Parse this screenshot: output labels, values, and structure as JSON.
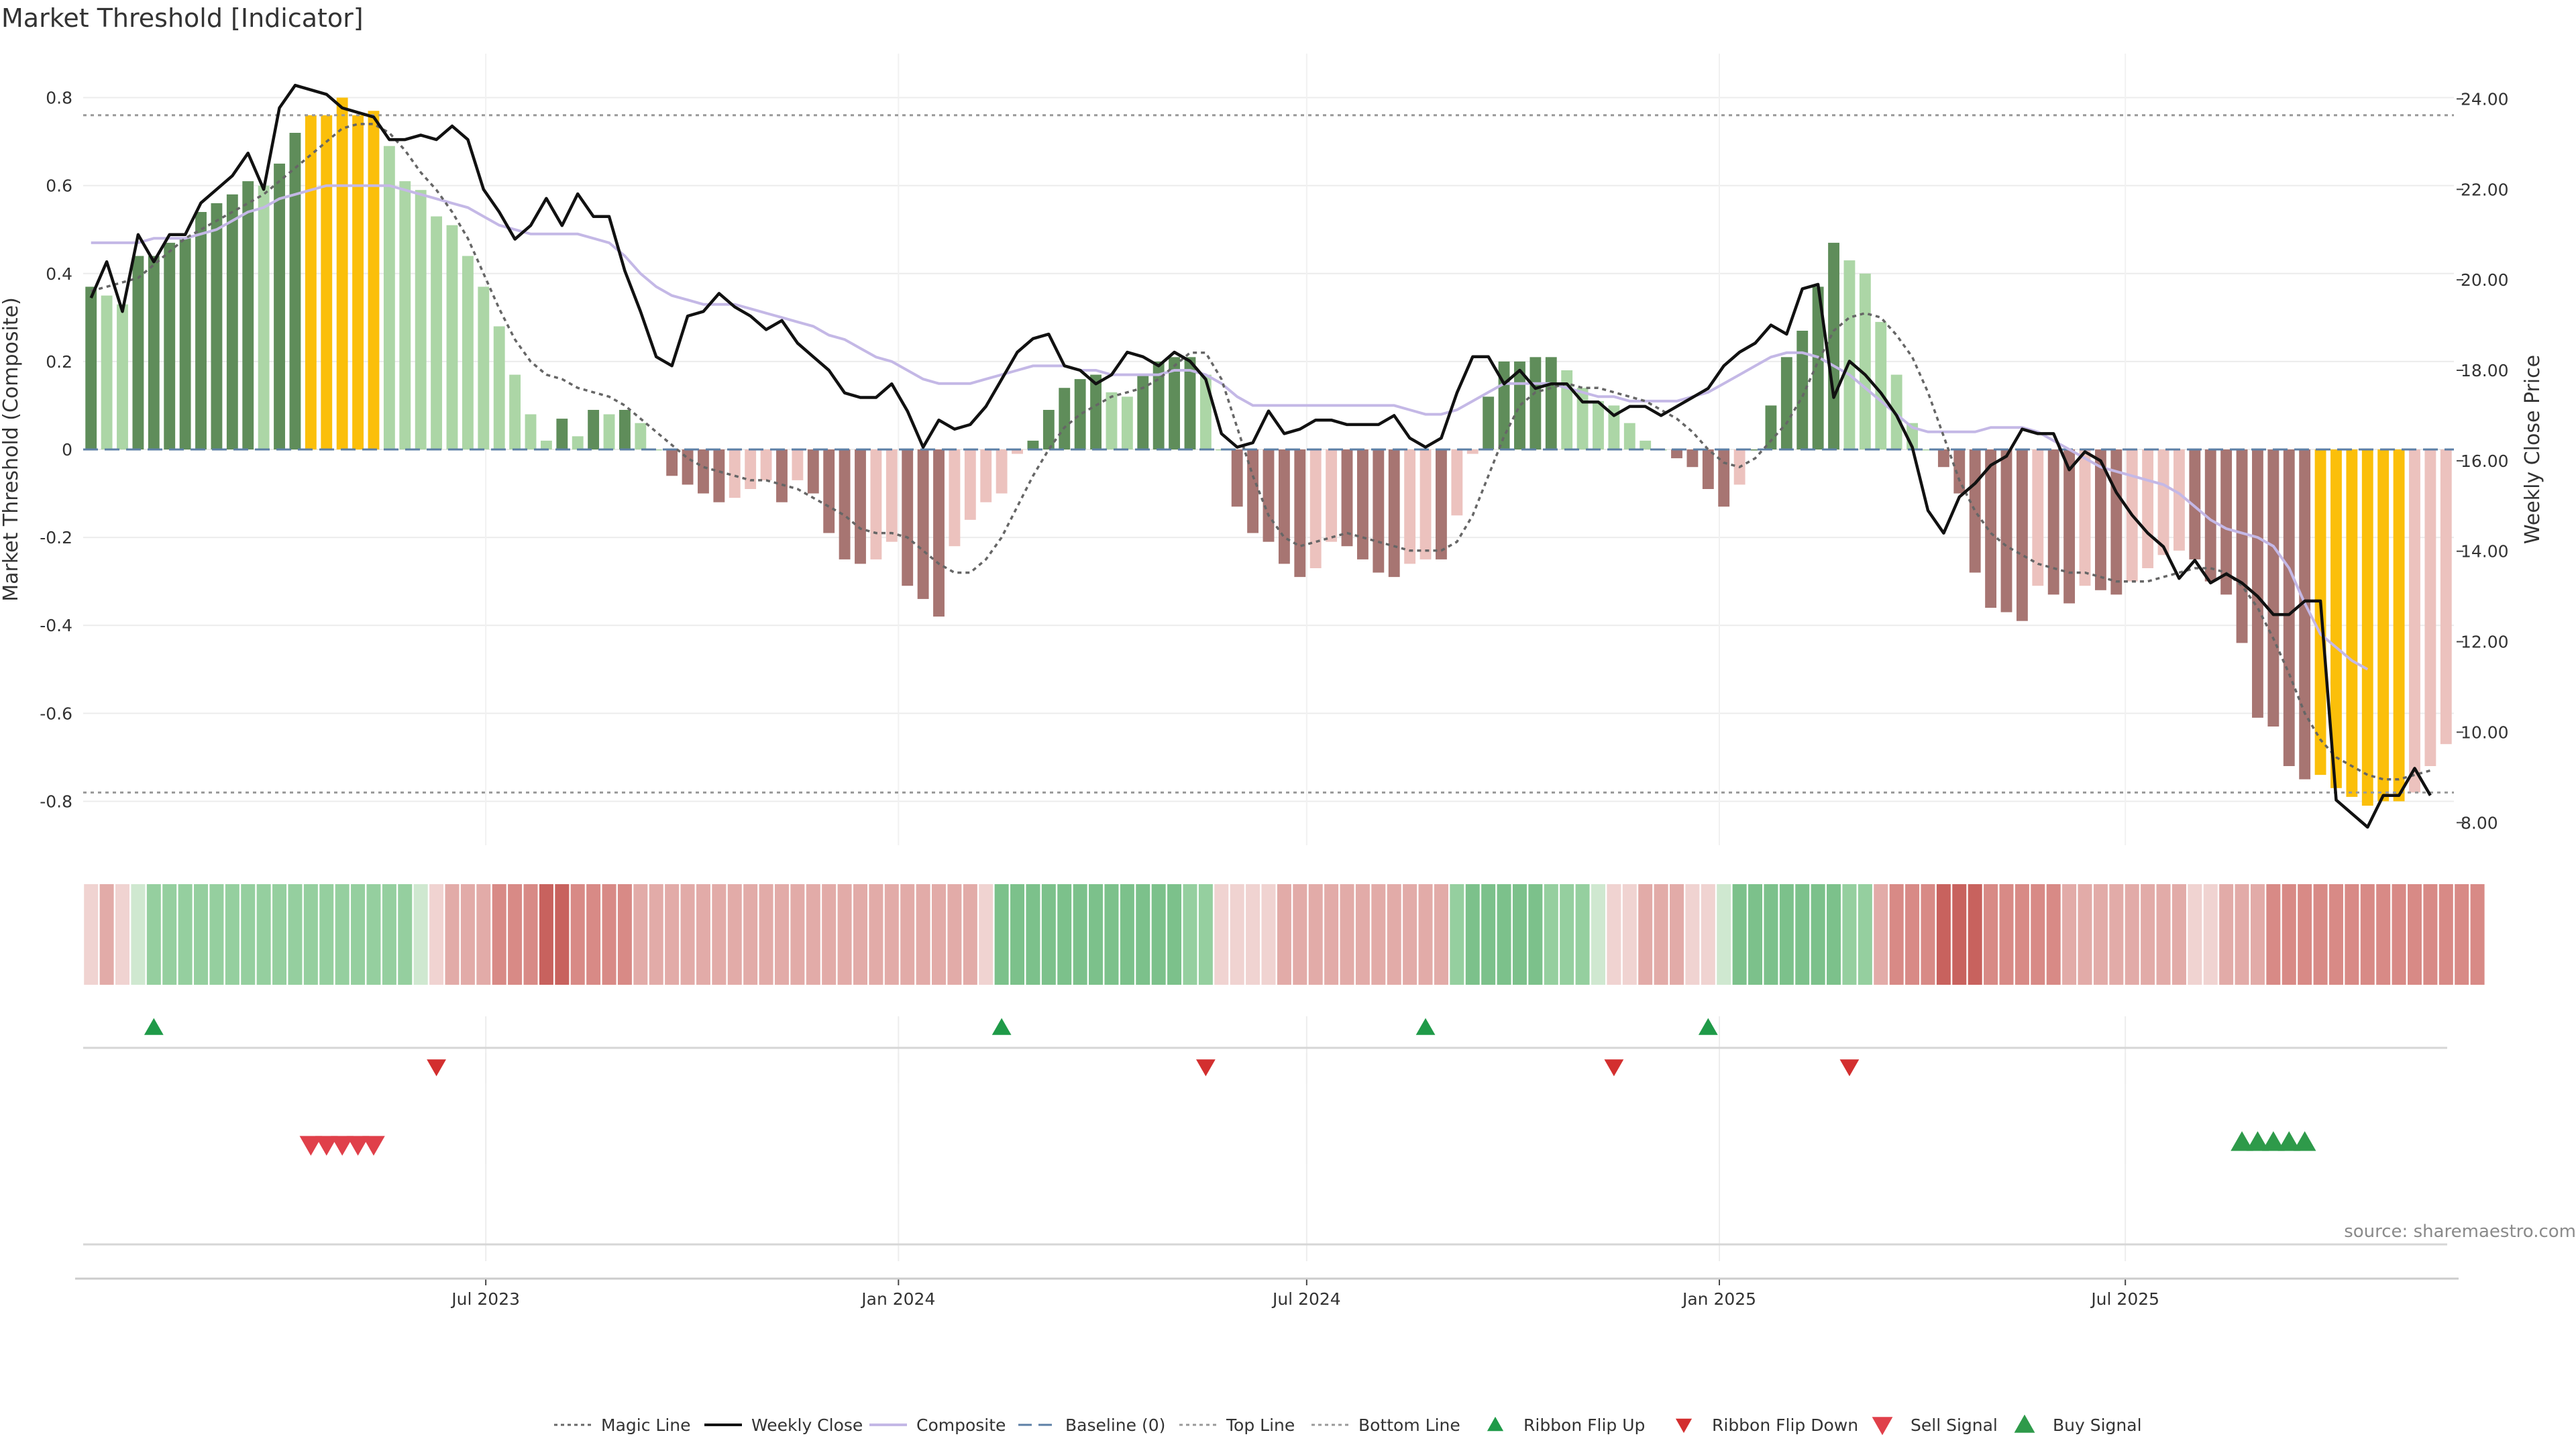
{
  "title": "Market Threshold [Indicator]",
  "source": "source: sharemaestro.com",
  "colors": {
    "bull_dark": "#5f8d5a",
    "bull_light": "#acd6a6",
    "bear_dark": "#a77572",
    "bear_light": "#ecc2be",
    "extreme": "#fbbf0a",
    "price": "#111111",
    "composite": "#c4b8e6",
    "magic": "#666666",
    "baseline": "#5c7fa6",
    "threshold": "#999999",
    "ribbon_up": "#1f9a48",
    "ribbon_down": "#d32f2f",
    "sell": "#e0404a",
    "buy": "#2e9a4a"
  },
  "chart_data": {
    "type": "bar",
    "start_date": "2023-01-06",
    "interval_days": 7,
    "x_ticks": [
      "Jul 2023",
      "Jan 2024",
      "Jul 2024",
      "Jan 2025",
      "Jul 2025"
    ],
    "x_tick_dates": [
      "2023-07-01",
      "2024-01-01",
      "2024-07-01",
      "2025-01-01",
      "2025-07-01"
    ],
    "ylabel": "Market Threshold (Composite)",
    "y2label": "Weekly Close Price",
    "ylim": [
      -0.9,
      0.9
    ],
    "y2lim": [
      7.5,
      25.0
    ],
    "y_ticks": [
      "0.8",
      "0.6",
      "0.4",
      "0.2",
      "0",
      "-0.2",
      "-0.4",
      "-0.6",
      "-0.8"
    ],
    "y_tick_values": [
      0.8,
      0.6,
      0.4,
      0.2,
      0,
      -0.2,
      -0.4,
      -0.6,
      -0.8
    ],
    "y2_ticks": [
      "24.00",
      "22.00",
      "20.00",
      "18.00",
      "16.00",
      "14.00",
      "12.00",
      "10.00",
      "8.00"
    ],
    "y2_tick_values": [
      24,
      22,
      20,
      18,
      16,
      14,
      12,
      10,
      8
    ],
    "top_line": 0.76,
    "bottom_line": -0.78,
    "baseline": 0,
    "bars": [
      0.37,
      0.35,
      0.33,
      0.44,
      0.44,
      0.47,
      0.48,
      0.54,
      0.56,
      0.58,
      0.61,
      0.6,
      0.65,
      0.72,
      0.76,
      0.76,
      0.8,
      0.76,
      0.77,
      0.69,
      0.61,
      0.59,
      0.53,
      0.51,
      0.44,
      0.37,
      0.28,
      0.17,
      0.08,
      0.02,
      0.07,
      0.03,
      0.09,
      0.08,
      0.09,
      0.06,
      0.0,
      -0.06,
      -0.08,
      -0.1,
      -0.12,
      -0.11,
      -0.09,
      -0.07,
      -0.12,
      -0.07,
      -0.1,
      -0.19,
      -0.25,
      -0.26,
      -0.25,
      -0.21,
      -0.31,
      -0.34,
      -0.38,
      -0.22,
      -0.16,
      -0.12,
      -0.1,
      -0.01,
      0.02,
      0.09,
      0.14,
      0.16,
      0.17,
      0.13,
      0.12,
      0.17,
      0.2,
      0.21,
      0.21,
      0.17,
      0.0,
      -0.13,
      -0.19,
      -0.21,
      -0.26,
      -0.29,
      -0.27,
      -0.21,
      -0.22,
      -0.25,
      -0.28,
      -0.29,
      -0.26,
      -0.25,
      -0.25,
      -0.15,
      -0.01,
      0.12,
      0.2,
      0.2,
      0.21,
      0.21,
      0.18,
      0.14,
      0.11,
      0.1,
      0.06,
      0.02,
      0.0,
      -0.02,
      -0.04,
      -0.09,
      -0.13,
      -0.08,
      0.0,
      0.1,
      0.21,
      0.27,
      0.37,
      0.47,
      0.43,
      0.4,
      0.29,
      0.17,
      0.06,
      0.0,
      -0.04,
      -0.1,
      -0.28,
      -0.36,
      -0.37,
      -0.39,
      -0.31,
      -0.33,
      -0.35,
      -0.31,
      -0.32,
      -0.33,
      -0.3,
      -0.27,
      -0.24,
      -0.23,
      -0.25,
      -0.3,
      -0.33,
      -0.44,
      -0.61,
      -0.63,
      -0.72,
      -0.75,
      -0.74,
      -0.77,
      -0.79,
      -0.81,
      -0.8,
      -0.8,
      -0.78,
      -0.72,
      -0.67
    ],
    "extreme_ranges": [
      [
        14,
        18
      ],
      [
        142,
        147
      ]
    ],
    "weekly_close": [
      19.6,
      20.4,
      19.3,
      21.0,
      20.4,
      21.0,
      21.0,
      21.7,
      22.0,
      22.3,
      22.8,
      22.0,
      23.8,
      24.3,
      24.2,
      24.1,
      23.8,
      23.7,
      23.6,
      23.1,
      23.1,
      23.2,
      23.1,
      23.4,
      23.1,
      22.0,
      21.5,
      20.9,
      21.2,
      21.8,
      21.2,
      21.9,
      21.4,
      21.4,
      20.2,
      19.3,
      18.3,
      18.1,
      19.2,
      19.3,
      19.7,
      19.4,
      19.2,
      18.9,
      19.1,
      18.6,
      18.3,
      18.0,
      17.5,
      17.4,
      17.4,
      17.7,
      17.1,
      16.3,
      16.9,
      16.7,
      16.8,
      17.2,
      17.8,
      18.4,
      18.7,
      18.8,
      18.1,
      18.0,
      17.7,
      17.9,
      18.4,
      18.3,
      18.1,
      18.4,
      18.2,
      17.8,
      16.6,
      16.3,
      16.4,
      17.1,
      16.6,
      16.7,
      16.9,
      16.9,
      16.8,
      16.8,
      16.8,
      17.0,
      16.5,
      16.3,
      16.5,
      17.5,
      18.3,
      18.3,
      17.7,
      18.0,
      17.6,
      17.7,
      17.7,
      17.3,
      17.3,
      17.0,
      17.2,
      17.2,
      17.0,
      17.2,
      17.4,
      17.6,
      18.1,
      18.4,
      18.6,
      19.0,
      18.8,
      19.8,
      19.9,
      17.4,
      18.2,
      17.9,
      17.5,
      17.0,
      16.3,
      14.9,
      14.4,
      15.2,
      15.5,
      15.9,
      16.1,
      16.7,
      16.6,
      16.6,
      15.8,
      16.2,
      16.0,
      15.3,
      14.8,
      14.4,
      14.1,
      13.4,
      13.8,
      13.3,
      13.5,
      13.3,
      13.0,
      12.6,
      12.6,
      12.9,
      12.9,
      8.5,
      8.2,
      7.9,
      8.6,
      8.6,
      9.2,
      8.6
    ],
    "composite": [
      0.47,
      0.47,
      0.47,
      0.47,
      0.48,
      0.48,
      0.48,
      0.49,
      0.5,
      0.52,
      0.54,
      0.55,
      0.57,
      0.58,
      0.59,
      0.6,
      0.6,
      0.6,
      0.6,
      0.6,
      0.59,
      0.58,
      0.57,
      0.56,
      0.55,
      0.53,
      0.51,
      0.5,
      0.49,
      0.49,
      0.49,
      0.49,
      0.48,
      0.47,
      0.44,
      0.4,
      0.37,
      0.35,
      0.34,
      0.33,
      0.33,
      0.33,
      0.32,
      0.31,
      0.3,
      0.29,
      0.28,
      0.26,
      0.25,
      0.23,
      0.21,
      0.2,
      0.18,
      0.16,
      0.15,
      0.15,
      0.15,
      0.16,
      0.17,
      0.18,
      0.19,
      0.19,
      0.19,
      0.18,
      0.18,
      0.17,
      0.17,
      0.17,
      0.17,
      0.18,
      0.18,
      0.17,
      0.15,
      0.12,
      0.1,
      0.1,
      0.1,
      0.1,
      0.1,
      0.1,
      0.1,
      0.1,
      0.1,
      0.1,
      0.09,
      0.08,
      0.08,
      0.09,
      0.11,
      0.13,
      0.15,
      0.15,
      0.15,
      0.15,
      0.14,
      0.13,
      0.12,
      0.12,
      0.11,
      0.11,
      0.11,
      0.11,
      0.12,
      0.13,
      0.15,
      0.17,
      0.19,
      0.21,
      0.22,
      0.22,
      0.21,
      0.19,
      0.17,
      0.14,
      0.11,
      0.08,
      0.05,
      0.04,
      0.04,
      0.04,
      0.04,
      0.05,
      0.05,
      0.05,
      0.04,
      0.02,
      0.0,
      -0.02,
      -0.04,
      -0.05,
      -0.06,
      -0.07,
      -0.08,
      -0.1,
      -0.13,
      -0.16,
      -0.18,
      -0.19,
      -0.2,
      -0.22,
      -0.27,
      -0.35,
      -0.42,
      -0.45,
      -0.48,
      -0.5
    ],
    "magic_line": [
      0.36,
      0.37,
      0.38,
      0.39,
      0.42,
      0.45,
      0.48,
      0.5,
      0.52,
      0.54,
      0.56,
      0.58,
      0.61,
      0.64,
      0.67,
      0.7,
      0.73,
      0.74,
      0.74,
      0.72,
      0.68,
      0.63,
      0.59,
      0.54,
      0.48,
      0.4,
      0.32,
      0.25,
      0.2,
      0.17,
      0.16,
      0.14,
      0.13,
      0.12,
      0.1,
      0.07,
      0.04,
      0.01,
      -0.02,
      -0.04,
      -0.05,
      -0.06,
      -0.07,
      -0.07,
      -0.08,
      -0.09,
      -0.11,
      -0.13,
      -0.15,
      -0.18,
      -0.19,
      -0.19,
      -0.2,
      -0.23,
      -0.26,
      -0.28,
      -0.28,
      -0.25,
      -0.2,
      -0.13,
      -0.06,
      0.0,
      0.05,
      0.08,
      0.1,
      0.12,
      0.13,
      0.14,
      0.16,
      0.19,
      0.22,
      0.22,
      0.16,
      0.05,
      -0.06,
      -0.15,
      -0.2,
      -0.22,
      -0.21,
      -0.2,
      -0.19,
      -0.2,
      -0.21,
      -0.22,
      -0.23,
      -0.23,
      -0.23,
      -0.21,
      -0.15,
      -0.06,
      0.03,
      0.1,
      0.13,
      0.14,
      0.15,
      0.14,
      0.14,
      0.13,
      0.12,
      0.11,
      0.09,
      0.07,
      0.04,
      0.0,
      -0.03,
      -0.04,
      -0.02,
      0.02,
      0.06,
      0.12,
      0.2,
      0.27,
      0.3,
      0.31,
      0.3,
      0.26,
      0.21,
      0.13,
      0.03,
      -0.07,
      -0.14,
      -0.19,
      -0.22,
      -0.24,
      -0.26,
      -0.27,
      -0.28,
      -0.28,
      -0.29,
      -0.3,
      -0.3,
      -0.3,
      -0.29,
      -0.28,
      -0.27,
      -0.27,
      -0.28,
      -0.31,
      -0.36,
      -0.43,
      -0.51,
      -0.6,
      -0.66,
      -0.7,
      -0.72,
      -0.74,
      -0.75,
      -0.75,
      -0.74,
      -0.73
    ],
    "ribbon": [
      -1,
      -2,
      -1,
      1,
      2,
      2,
      2,
      2,
      2,
      2,
      2,
      2,
      2,
      2,
      2,
      2,
      2,
      2,
      2,
      2,
      2,
      1,
      -1,
      -2,
      -2,
      -2,
      -3,
      -3,
      -3,
      -4,
      -4,
      -3,
      -3,
      -3,
      -3,
      -2,
      -2,
      -2,
      -2,
      -2,
      -2,
      -2,
      -2,
      -2,
      -2,
      -2,
      -2,
      -2,
      -2,
      -2,
      -2,
      -2,
      -2,
      -2,
      -2,
      -2,
      -2,
      -1,
      3,
      3,
      3,
      3,
      3,
      3,
      3,
      3,
      3,
      3,
      3,
      3,
      2,
      2,
      -1,
      -1,
      -1,
      -1,
      -2,
      -2,
      -2,
      -2,
      -2,
      -2,
      -2,
      -2,
      -2,
      -2,
      -2,
      2,
      3,
      3,
      3,
      3,
      3,
      2,
      2,
      2,
      1,
      -1,
      -1,
      -2,
      -2,
      -2,
      -1,
      -1,
      1,
      3,
      3,
      3,
      3,
      3,
      3,
      3,
      2,
      2,
      -2,
      -3,
      -3,
      -3,
      -4,
      -4,
      -4,
      -3,
      -3,
      -3,
      -3,
      -3,
      -2,
      -2,
      -2,
      -2,
      -2,
      -2,
      -2,
      -2,
      -1,
      -1,
      -2,
      -2,
      -2,
      -3,
      -3,
      -3,
      -3,
      -3,
      -3,
      -3,
      -3,
      -3,
      -3,
      -3,
      -3,
      -3,
      -3
    ],
    "ribbon_flip_up": [
      4,
      58,
      85,
      103
    ],
    "ribbon_flip_down": [
      22,
      71,
      97,
      112
    ],
    "sell_signals": [
      14,
      15,
      16,
      17,
      18
    ],
    "buy_signals": [
      137,
      138,
      139,
      140,
      141
    ],
    "legend": [
      "Magic Line",
      "Weekly Close",
      "Composite",
      "Baseline (0)",
      "Top Line",
      "Bottom Line",
      "Ribbon Flip Up",
      "Ribbon Flip Down",
      "Sell Signal",
      "Buy Signal"
    ]
  }
}
